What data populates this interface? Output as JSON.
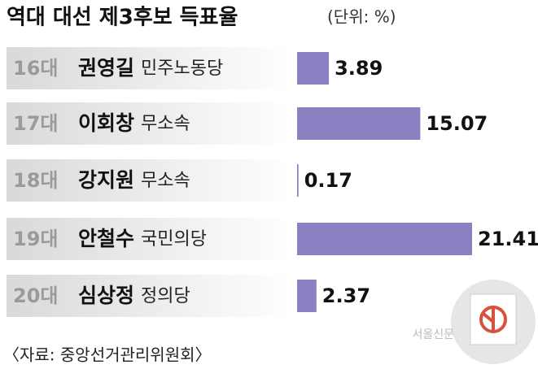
{
  "chart_data": {
    "type": "bar",
    "orientation": "horizontal",
    "title": "역대 대선 제3후보 득표율",
    "subtitle": "(단위: %)",
    "categories": [
      "16대",
      "17대",
      "18대",
      "19대",
      "20대"
    ],
    "candidates": [
      "권영길",
      "이회창",
      "강지원",
      "안철수",
      "심상정"
    ],
    "parties": [
      "민주노동당",
      "무소속",
      "무소속",
      "국민의당",
      "정의당"
    ],
    "values": [
      3.89,
      15.07,
      0.17,
      21.41,
      2.37
    ],
    "color": "#8b80c2",
    "source": "〈자료: 중앙선거관리위원회〉",
    "watermark": "서울신문"
  }
}
